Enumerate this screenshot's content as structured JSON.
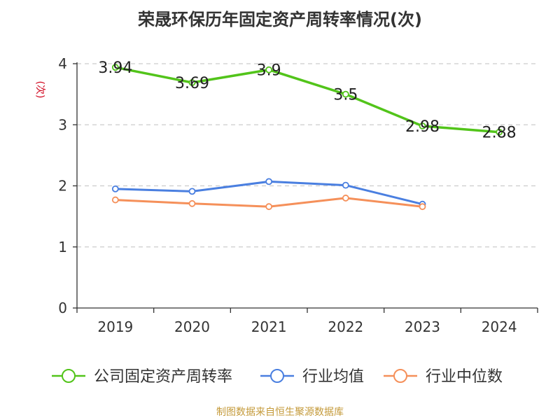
{
  "title": "荣晟环保历年固定资产周转率情况(次)",
  "footer": "制图数据来自恒生聚源数据库",
  "chart_data": {
    "type": "line",
    "title": "荣晟环保历年固定资产周转率情况(次)",
    "xlabel": "",
    "ylabel": "(次)",
    "categories": [
      "2019",
      "2020",
      "2021",
      "2022",
      "2023",
      "2024"
    ],
    "ylim": [
      0,
      4
    ],
    "yticks": [
      0,
      1,
      2,
      3,
      4
    ],
    "grid": true,
    "legend_position": "bottom",
    "series": [
      {
        "name": "公司固定资产周转率",
        "color": "#52c41a",
        "values": [
          3.94,
          3.69,
          3.9,
          3.5,
          2.98,
          2.88
        ],
        "labels": [
          "3.94",
          "3.69",
          "3.9",
          "3.5",
          "2.98",
          "2.88"
        ]
      },
      {
        "name": "行业均值",
        "color": "#4a7fe0",
        "values": [
          1.95,
          1.91,
          2.07,
          2.01,
          1.7,
          null
        ]
      },
      {
        "name": "行业中位数",
        "color": "#f5905a",
        "values": [
          1.77,
          1.71,
          1.66,
          1.8,
          1.66,
          null
        ]
      }
    ]
  }
}
